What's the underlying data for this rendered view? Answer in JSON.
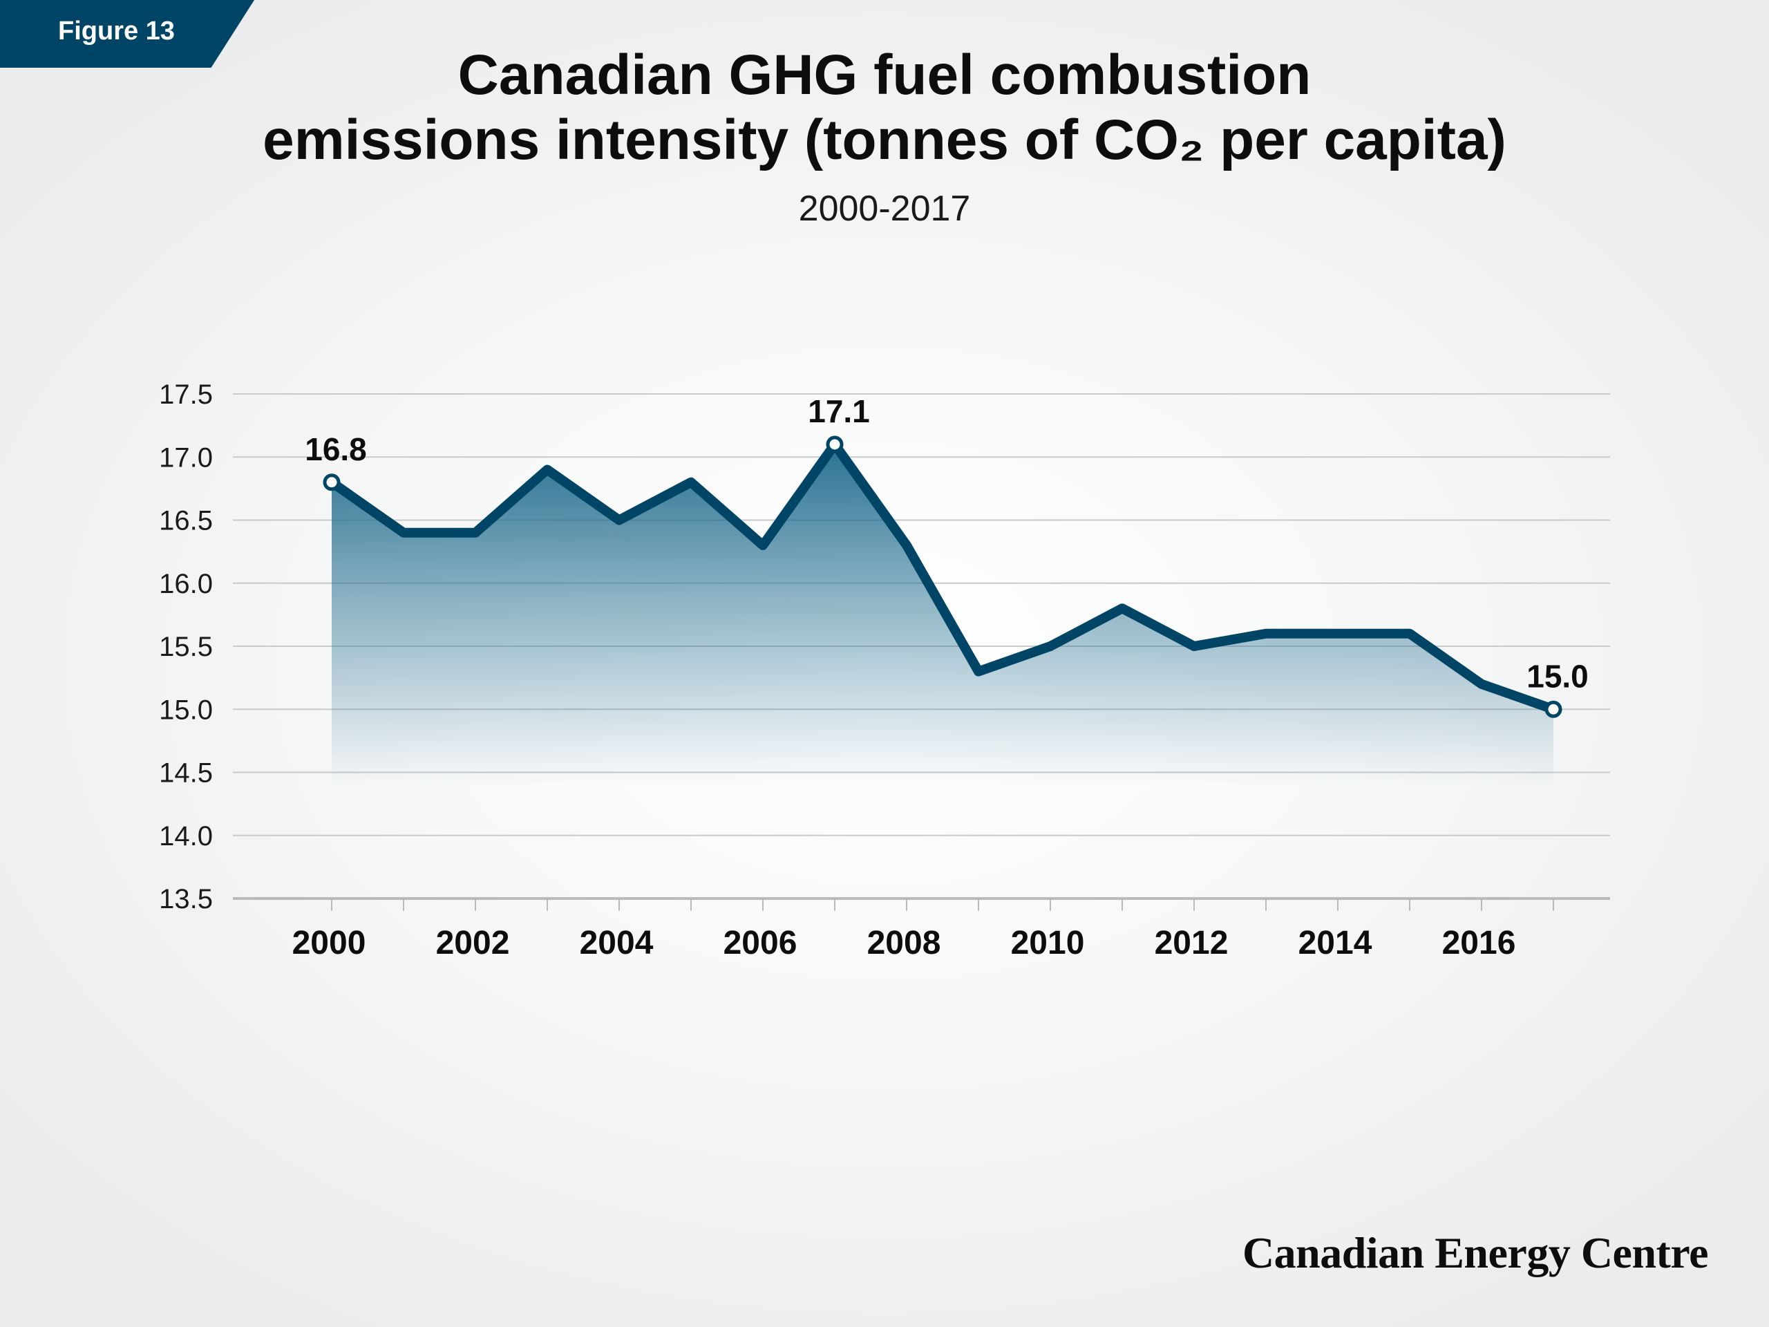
{
  "badge": {
    "label": "Figure 13"
  },
  "title_lines": [
    "Canadian GHG fuel combustion",
    "emissions intensity (tonnes of CO₂ per capita)"
  ],
  "subtitle": "2000-2017",
  "brand": "Canadian Energy Centre",
  "colors": {
    "line": "#004466",
    "badge": "#004466",
    "area_top": "#1e6a8c",
    "grid": "#c8cacc"
  },
  "chart_data": {
    "type": "area",
    "title": "Canadian GHG fuel combustion emissions intensity (tonnes of CO₂ per capita)",
    "subtitle": "2000-2017",
    "x": [
      2000,
      2001,
      2002,
      2003,
      2004,
      2005,
      2006,
      2007,
      2008,
      2009,
      2010,
      2011,
      2012,
      2013,
      2014,
      2015,
      2016,
      2017
    ],
    "values": [
      16.8,
      16.4,
      16.4,
      16.9,
      16.5,
      16.8,
      16.3,
      17.1,
      16.3,
      15.3,
      15.5,
      15.8,
      15.5,
      15.6,
      15.6,
      15.6,
      15.2,
      15.0
    ],
    "x_ticks": [
      "2000",
      "2002",
      "2004",
      "2006",
      "2008",
      "2010",
      "2012",
      "2014",
      "2016"
    ],
    "y_ticks": [
      "17.5",
      "17.0",
      "16.5",
      "16.0",
      "15.5",
      "15.0",
      "14.5",
      "14.0",
      "13.5"
    ],
    "ylim": [
      13.5,
      17.5
    ],
    "xlim": [
      1999.7,
      2018.7
    ],
    "grid": true,
    "data_labels": [
      {
        "x": 2000,
        "text": "16.8"
      },
      {
        "x": 2007,
        "text": "17.1"
      },
      {
        "x": 2017,
        "text": "15.0"
      }
    ]
  }
}
